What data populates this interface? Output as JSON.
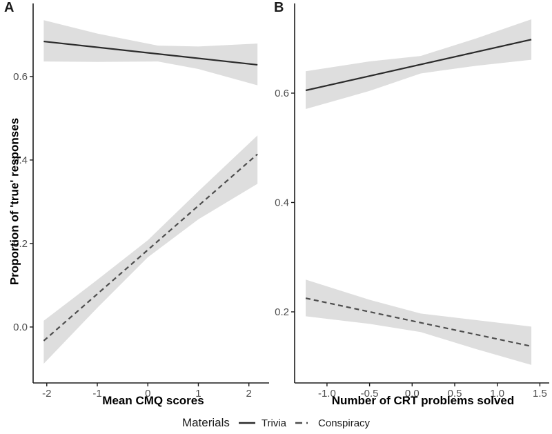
{
  "figure": {
    "background": "#ffffff",
    "colors": {
      "band": "#dedede",
      "trivia_line": "#2b2b2b",
      "conspiracy_line": "#4d4d4d",
      "axis": "#1a1a1a",
      "tick_label": "#4d4d4d"
    },
    "legend": {
      "title": "Materials",
      "position": "bottom-center",
      "items": [
        {
          "label": "Trivia",
          "linetype": "solid"
        },
        {
          "label": "Conspiracy",
          "linetype": "dashed"
        }
      ]
    }
  },
  "chart_data": [
    {
      "type": "line",
      "panel_label": "A",
      "xlabel": "Mean CMQ scores",
      "ylabel": "Proportion of 'true' responses",
      "xlim": [
        -2.27,
        2.4
      ],
      "ylim": [
        -0.134,
        0.775
      ],
      "grid": false,
      "xticks": {
        "values": [
          -2,
          -1,
          0,
          1,
          2
        ],
        "labels": [
          "-2",
          "-1",
          "0",
          "1",
          "2"
        ]
      },
      "yticks": {
        "values": [
          0.0,
          0.2,
          0.4,
          0.6
        ],
        "labels": [
          "0.0",
          "0.2",
          "0.4",
          "0.6"
        ]
      },
      "series": [
        {
          "name": "Trivia",
          "linetype": "solid",
          "line": {
            "x": [
              -2.06,
              2.17
            ],
            "y": [
              0.684,
              0.628
            ]
          },
          "band": {
            "x": [
              -2.06,
              -1.0,
              0.2,
              1.0,
              2.17
            ],
            "upper": [
              0.735,
              0.703,
              0.674,
              0.672,
              0.679
            ],
            "lower": [
              0.636,
              0.635,
              0.636,
              0.618,
              0.579
            ]
          }
        },
        {
          "name": "Conspiracy",
          "linetype": "dashed",
          "line": {
            "x": [
              -2.06,
              2.17
            ],
            "y": [
              -0.033,
              0.414
            ]
          },
          "band": {
            "x": [
              -2.06,
              -1.0,
              0.0,
              1.0,
              2.17
            ],
            "upper": [
              0.015,
              0.113,
              0.208,
              0.325,
              0.459
            ],
            "lower": [
              -0.088,
              0.046,
              0.167,
              0.258,
              0.343
            ]
          }
        }
      ]
    },
    {
      "type": "line",
      "panel_label": "B",
      "xlabel": "Number of CRT problems solved",
      "ylabel": "",
      "xlim": [
        -1.38,
        1.61
      ],
      "ylim": [
        0.07,
        0.764
      ],
      "grid": false,
      "xticks": {
        "values": [
          -1.0,
          -0.5,
          0.0,
          0.5,
          1.0,
          1.5
        ],
        "labels": [
          "-1.0",
          "-0.5",
          "0.0",
          "0.5",
          "1.0",
          "1.5"
        ]
      },
      "yticks": {
        "values": [
          0.2,
          0.4,
          0.6
        ],
        "labels": [
          "0.2",
          "0.4",
          "0.6"
        ]
      },
      "series": [
        {
          "name": "Trivia",
          "linetype": "solid",
          "line": {
            "x": [
              -1.25,
              1.4
            ],
            "y": [
              0.605,
              0.698
            ]
          },
          "band": {
            "x": [
              -1.25,
              -0.5,
              0.1,
              0.75,
              1.4
            ],
            "upper": [
              0.64,
              0.658,
              0.668,
              0.7,
              0.735
            ],
            "lower": [
              0.571,
              0.604,
              0.636,
              0.65,
              0.661
            ]
          }
        },
        {
          "name": "Conspiracy",
          "linetype": "dashed",
          "line": {
            "x": [
              -1.25,
              1.4
            ],
            "y": [
              0.225,
              0.137
            ]
          },
          "band": {
            "x": [
              -1.25,
              -0.5,
              0.1,
              0.75,
              1.4
            ],
            "upper": [
              0.259,
              0.222,
              0.197,
              0.185,
              0.173
            ],
            "lower": [
              0.192,
              0.178,
              0.163,
              0.132,
              0.103
            ]
          }
        }
      ]
    }
  ]
}
